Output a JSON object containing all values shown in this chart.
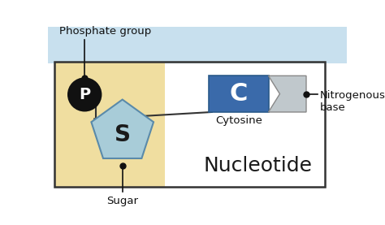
{
  "bg_color": "#ffffff",
  "tan_bg": "#f0dea0",
  "light_blue_bg": "#c8e0ee",
  "pentagon_fill": "#a8ccd8",
  "pentagon_edge": "#5a8aaa",
  "phosphate_fill": "#111111",
  "cytosine_fill": "#3a6aaa",
  "cytosine_arrow_fill": "#c0c8cc",
  "title": "Nucleotide",
  "label_phosphate": "Phosphate group",
  "label_sugar": "Sugar",
  "label_cytosine": "Cytosine",
  "label_nitrogenous": "Nitrogenous\nbase",
  "letter_P": "P",
  "letter_S": "S",
  "letter_C": "C"
}
